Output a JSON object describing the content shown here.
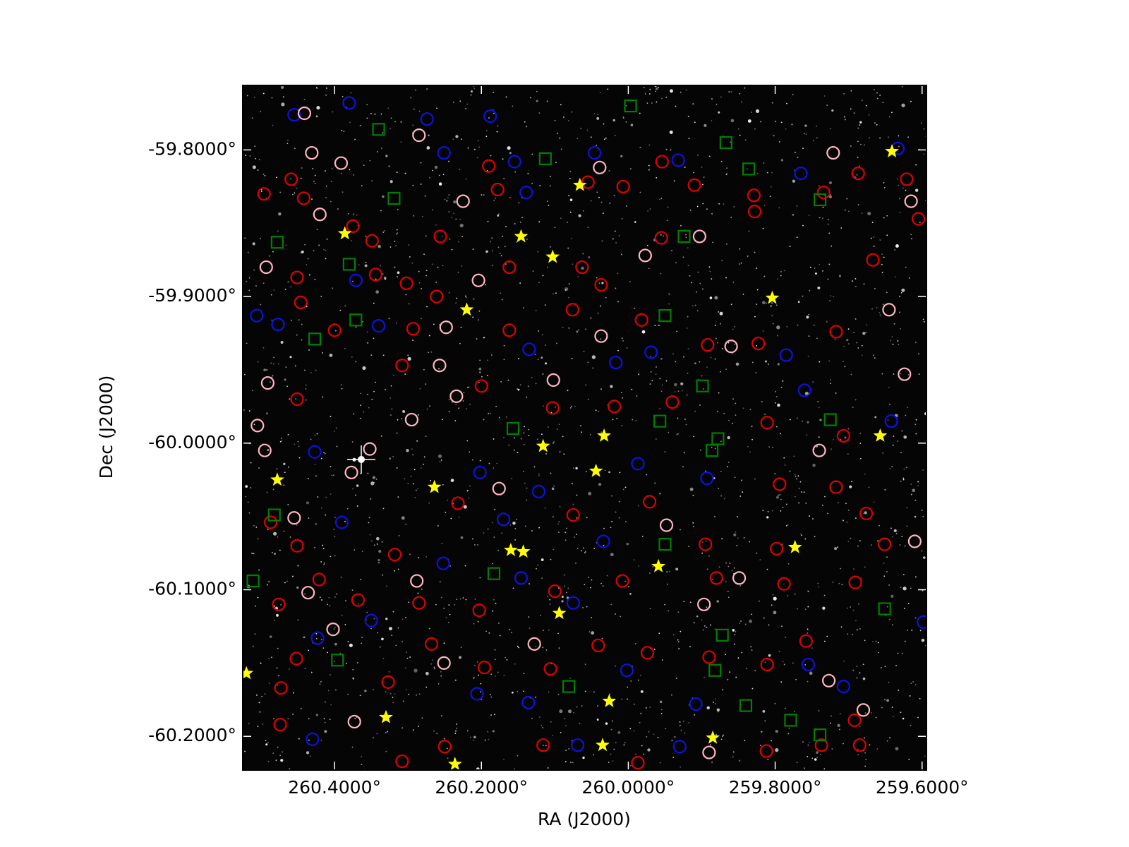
{
  "chart_data": {
    "type": "scatter",
    "xlabel": "RA (J2000)",
    "ylabel": "Dec (J2000)",
    "xlim": [
      260.525,
      259.594
    ],
    "ylim": [
      -60.223,
      -59.756
    ],
    "xticks": [
      {
        "value": 260.4,
        "label": "260.4000°"
      },
      {
        "value": 260.2,
        "label": "260.2000°"
      },
      {
        "value": 260.0,
        "label": "260.0000°"
      },
      {
        "value": 259.8,
        "label": "259.8000°"
      },
      {
        "value": 259.6,
        "label": "259.6000°"
      }
    ],
    "yticks": [
      {
        "value": -59.8,
        "label": "-59.8000°"
      },
      {
        "value": -59.9,
        "label": "-59.9000°"
      },
      {
        "value": -60.0,
        "label": "-60.0000°"
      },
      {
        "value": -60.1,
        "label": "-60.1000°"
      },
      {
        "value": -60.2,
        "label": "-60.2000°"
      }
    ],
    "series": [
      {
        "color": "#e00000",
        "marker": "circle",
        "x": [
          260.459,
          260.496,
          260.442,
          260.375,
          260.349,
          260.256,
          260.19,
          260.178,
          260.055,
          260.007,
          259.954,
          259.91,
          259.829,
          259.734,
          259.687,
          259.621,
          259.605,
          259.667,
          259.828,
          259.955,
          260.063,
          260.037,
          260.162,
          260.302,
          260.344,
          260.451,
          260.446,
          260.4,
          260.293,
          260.261,
          260.162,
          260.076,
          259.982,
          259.892,
          259.823,
          259.717,
          260.308,
          260.2,
          260.103,
          260.019,
          259.94,
          259.811,
          259.707,
          260.451,
          260.487,
          260.451,
          260.421,
          260.476,
          260.368,
          260.285,
          260.203,
          260.1,
          260.008,
          259.88,
          259.788,
          259.691,
          259.651,
          259.676,
          260.452,
          260.473,
          260.327,
          260.268,
          260.196,
          260.106,
          260.041,
          259.974,
          259.89,
          259.811,
          259.758,
          259.692,
          259.685,
          259.737,
          259.812,
          259.987,
          260.116,
          260.25,
          260.308,
          260.474,
          259.794,
          259.717,
          259.798,
          259.895,
          259.971,
          260.075,
          260.232,
          260.318
        ],
        "y": [
          -59.82,
          -59.83,
          -59.833,
          -59.852,
          -59.862,
          -59.859,
          -59.811,
          -59.827,
          -59.822,
          -59.825,
          -59.808,
          -59.824,
          -59.831,
          -59.829,
          -59.816,
          -59.82,
          -59.847,
          -59.875,
          -59.842,
          -59.86,
          -59.88,
          -59.892,
          -59.88,
          -59.891,
          -59.885,
          -59.887,
          -59.904,
          -59.923,
          -59.922,
          -59.9,
          -59.923,
          -59.909,
          -59.916,
          -59.933,
          -59.932,
          -59.924,
          -59.947,
          -59.961,
          -59.976,
          -59.975,
          -59.972,
          -59.986,
          -59.995,
          -59.97,
          -60.054,
          -60.07,
          -60.093,
          -60.11,
          -60.107,
          -60.109,
          -60.114,
          -60.101,
          -60.094,
          -60.092,
          -60.096,
          -60.095,
          -60.069,
          -60.048,
          -60.147,
          -60.167,
          -60.163,
          -60.137,
          -60.153,
          -60.154,
          -60.138,
          -60.143,
          -60.146,
          -60.151,
          -60.135,
          -60.189,
          -60.206,
          -60.206,
          -60.21,
          -60.218,
          -60.206,
          -60.207,
          -60.217,
          -60.192,
          -60.028,
          -60.03,
          -60.072,
          -60.069,
          -60.04,
          -60.049,
          -60.041,
          -60.076
        ]
      },
      {
        "color": "#1010e0",
        "marker": "circle",
        "x": [
          260.38,
          260.455,
          260.274,
          260.188,
          260.251,
          260.155,
          260.139,
          260.046,
          259.932,
          259.765,
          259.633,
          260.371,
          260.506,
          260.477,
          260.34,
          260.135,
          260.017,
          259.969,
          259.785,
          259.76,
          259.642,
          260.427,
          260.202,
          260.122,
          259.987,
          259.893,
          260.39,
          260.17,
          260.034,
          260.252,
          260.146,
          260.075,
          260.423,
          260.35,
          260.002,
          259.755,
          259.707,
          260.206,
          260.136,
          259.908,
          260.43,
          260.069,
          259.93,
          259.598
        ],
        "y": [
          -59.768,
          -59.776,
          -59.779,
          -59.777,
          -59.802,
          -59.808,
          -59.829,
          -59.802,
          -59.807,
          -59.816,
          -59.799,
          -59.889,
          -59.913,
          -59.919,
          -59.92,
          -59.936,
          -59.945,
          -59.938,
          -59.94,
          -59.964,
          -59.985,
          -60.006,
          -60.02,
          -60.033,
          -60.014,
          -60.024,
          -60.054,
          -60.052,
          -60.067,
          -60.082,
          -60.092,
          -60.109,
          -60.133,
          -60.121,
          -60.155,
          -60.151,
          -60.166,
          -60.171,
          -60.177,
          -60.178,
          -60.202,
          -60.206,
          -60.207,
          -60.122
        ]
      },
      {
        "color": "#ffb6c1",
        "marker": "circle",
        "x": [
          260.441,
          260.431,
          260.391,
          260.285,
          260.225,
          260.42,
          260.493,
          260.204,
          260.248,
          260.257,
          260.234,
          260.102,
          260.037,
          260.039,
          259.977,
          259.903,
          259.86,
          259.721,
          259.645,
          259.624,
          260.491,
          260.505,
          260.495,
          260.377,
          260.352,
          260.295,
          260.176,
          259.74,
          259.61,
          259.615,
          260.455,
          260.436,
          260.402,
          260.373,
          260.288,
          260.251,
          260.128,
          259.897,
          259.849,
          259.727,
          259.68,
          259.89,
          259.948
        ],
        "y": [
          -59.775,
          -59.802,
          -59.809,
          -59.79,
          -59.835,
          -59.844,
          -59.88,
          -59.889,
          -59.921,
          -59.947,
          -59.968,
          -59.957,
          -59.927,
          -59.812,
          -59.872,
          -59.859,
          -59.934,
          -59.802,
          -59.909,
          -59.953,
          -59.959,
          -59.988,
          -60.005,
          -60.02,
          -60.004,
          -59.984,
          -60.031,
          -60.005,
          -60.067,
          -59.835,
          -60.051,
          -60.102,
          -60.127,
          -60.19,
          -60.094,
          -60.15,
          -60.137,
          -60.11,
          -60.092,
          -60.162,
          -60.182,
          -60.211,
          -60.056
        ]
      },
      {
        "color": "#008000",
        "marker": "square",
        "x": [
          260.34,
          259.997,
          260.113,
          259.867,
          259.836,
          259.739,
          260.319,
          260.478,
          260.38,
          259.924,
          260.371,
          260.427,
          259.95,
          259.899,
          260.157,
          259.957,
          259.878,
          259.886,
          259.725,
          260.482,
          260.511,
          260.183,
          259.95,
          259.872,
          259.882,
          259.651,
          260.396,
          260.081,
          259.84,
          259.779,
          259.739
        ],
        "y": [
          -59.786,
          -59.77,
          -59.806,
          -59.795,
          -59.813,
          -59.834,
          -59.833,
          -59.863,
          -59.878,
          -59.859,
          -59.916,
          -59.929,
          -59.913,
          -59.961,
          -59.99,
          -59.985,
          -59.997,
          -60.005,
          -59.984,
          -60.049,
          -60.094,
          -60.089,
          -60.069,
          -60.131,
          -60.155,
          -60.113,
          -60.148,
          -60.166,
          -60.179,
          -60.189,
          -60.199
        ]
      },
      {
        "color": "#ffff00",
        "marker": "star",
        "x": [
          260.386,
          260.146,
          260.103,
          260.066,
          260.22,
          259.804,
          259.641,
          259.657,
          260.116,
          260.033,
          260.044,
          260.264,
          260.478,
          260.16,
          260.143,
          259.959,
          259.773,
          260.094,
          260.026,
          260.33,
          259.885,
          260.035,
          260.236,
          260.52
        ],
        "y": [
          -59.857,
          -59.859,
          -59.873,
          -59.824,
          -59.909,
          -59.901,
          -59.801,
          -59.995,
          -60.002,
          -59.995,
          -60.019,
          -60.03,
          -60.025,
          -60.073,
          -60.074,
          -60.084,
          -60.071,
          -60.116,
          -60.176,
          -60.187,
          -60.201,
          -60.206,
          -60.219,
          -60.157
        ]
      }
    ]
  }
}
